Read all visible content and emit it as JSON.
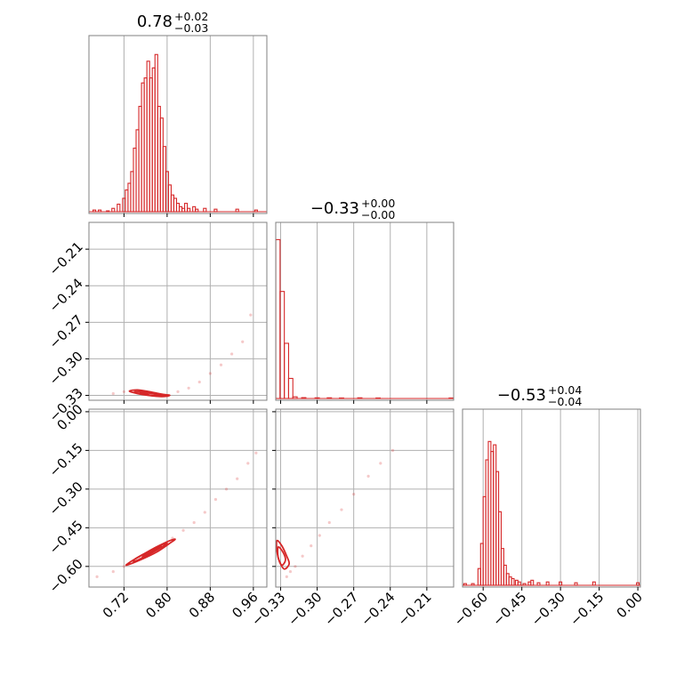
{
  "figure": "corner-plot",
  "colors": {
    "main": "#d62728",
    "grid": "#b0b0b0",
    "frame": "#808080"
  },
  "chart_data": [
    {
      "panel": "hist-p0",
      "type": "histogram",
      "title": {
        "value": "0.78",
        "plus": "+0.02",
        "minus": "−0.03"
      },
      "range": [
        0.655,
        0.985
      ],
      "bin_width": 0.005,
      "bins": [
        [
          0.665,
          0.01
        ],
        [
          0.675,
          0.01
        ],
        [
          0.69,
          0.005
        ],
        [
          0.7,
          0.02
        ],
        [
          0.71,
          0.045
        ],
        [
          0.72,
          0.08
        ],
        [
          0.725,
          0.13
        ],
        [
          0.73,
          0.17
        ],
        [
          0.735,
          0.24
        ],
        [
          0.74,
          0.38
        ],
        [
          0.745,
          0.49
        ],
        [
          0.75,
          0.63
        ],
        [
          0.755,
          0.77
        ],
        [
          0.76,
          0.8
        ],
        [
          0.765,
          0.9
        ],
        [
          0.77,
          0.8
        ],
        [
          0.775,
          0.86
        ],
        [
          0.78,
          0.94
        ],
        [
          0.785,
          0.63
        ],
        [
          0.79,
          0.56
        ],
        [
          0.795,
          0.39
        ],
        [
          0.8,
          0.24
        ],
        [
          0.805,
          0.16
        ],
        [
          0.81,
          0.1
        ],
        [
          0.815,
          0.08
        ],
        [
          0.82,
          0.05
        ],
        [
          0.825,
          0.03
        ],
        [
          0.83,
          0.02
        ],
        [
          0.835,
          0.05
        ],
        [
          0.84,
          0.02
        ],
        [
          0.85,
          0.03
        ],
        [
          0.855,
          0.015
        ],
        [
          0.87,
          0.02
        ],
        [
          0.89,
          0.015
        ],
        [
          0.93,
          0.015
        ],
        [
          0.965,
          0.01
        ]
      ]
    },
    {
      "panel": "hist-p1",
      "type": "histogram",
      "title": {
        "value": "−0.33",
        "plus": "+0.00",
        "minus": "−0.00"
      },
      "range": [
        -0.334,
        -0.188
      ],
      "bin_width": 0.0035,
      "bins": [
        [
          -0.3322,
          0.95
        ],
        [
          -0.3287,
          0.64
        ],
        [
          -0.3252,
          0.33
        ],
        [
          -0.3217,
          0.12
        ],
        [
          -0.3182,
          0.01
        ],
        [
          -0.311,
          0.005
        ],
        [
          -0.3,
          0.004
        ],
        [
          -0.29,
          0.004
        ],
        [
          -0.28,
          0.003
        ],
        [
          -0.265,
          0.004
        ],
        [
          -0.25,
          0.003
        ],
        [
          -0.19,
          0.003
        ]
      ]
    },
    {
      "panel": "hist-p2",
      "type": "histogram",
      "title": {
        "value": "−0.53",
        "plus": "+0.04",
        "minus": "−0.04"
      },
      "range": [
        -0.68,
        0.01
      ],
      "bin_width": 0.01,
      "bins": [
        [
          -0.67,
          0.01
        ],
        [
          -0.64,
          0.01
        ],
        [
          -0.615,
          0.1
        ],
        [
          -0.605,
          0.25
        ],
        [
          -0.595,
          0.53
        ],
        [
          -0.585,
          0.75
        ],
        [
          -0.575,
          0.86
        ],
        [
          -0.565,
          0.8
        ],
        [
          -0.555,
          0.84
        ],
        [
          -0.545,
          0.68
        ],
        [
          -0.535,
          0.44
        ],
        [
          -0.525,
          0.22
        ],
        [
          -0.515,
          0.12
        ],
        [
          -0.505,
          0.07
        ],
        [
          -0.495,
          0.05
        ],
        [
          -0.485,
          0.04
        ],
        [
          -0.47,
          0.03
        ],
        [
          -0.46,
          0.02
        ],
        [
          -0.44,
          0.01
        ],
        [
          -0.42,
          0.02
        ],
        [
          -0.41,
          0.03
        ],
        [
          -0.385,
          0.015
        ],
        [
          -0.35,
          0.02
        ],
        [
          -0.3,
          0.02
        ],
        [
          -0.24,
          0.015
        ],
        [
          -0.17,
          0.02
        ],
        [
          0.0,
          0.015
        ]
      ]
    },
    {
      "panel": "scatter-p0-p1",
      "type": "scatter",
      "xlim": [
        0.655,
        0.985
      ],
      "ylim": [
        -0.334,
        -0.188
      ],
      "points": [
        [
          0.7,
          -0.3285
        ],
        [
          0.72,
          -0.327
        ],
        [
          0.74,
          -0.3265
        ],
        [
          0.76,
          -0.3275
        ],
        [
          0.78,
          -0.329
        ],
        [
          0.8,
          -0.3305
        ],
        [
          0.82,
          -0.327
        ],
        [
          0.84,
          -0.324
        ],
        [
          0.86,
          -0.319
        ],
        [
          0.88,
          -0.312
        ],
        [
          0.9,
          -0.305
        ],
        [
          0.92,
          -0.296
        ],
        [
          0.94,
          -0.286
        ],
        [
          0.955,
          -0.264
        ]
      ],
      "contours": [
        [
          [
            0.73,
            -0.3265
          ],
          [
            0.745,
            -0.3255
          ],
          [
            0.765,
            -0.3268
          ],
          [
            0.79,
            -0.329
          ],
          [
            0.805,
            -0.33
          ],
          [
            0.79,
            -0.331
          ],
          [
            0.765,
            -0.33
          ],
          [
            0.745,
            -0.3285
          ]
        ],
        [
          [
            0.74,
            -0.327
          ],
          [
            0.76,
            -0.327
          ],
          [
            0.785,
            -0.329
          ],
          [
            0.8,
            -0.33
          ],
          [
            0.78,
            -0.3305
          ],
          [
            0.755,
            -0.329
          ]
        ],
        [
          [
            0.75,
            -0.3278
          ],
          [
            0.775,
            -0.3285
          ],
          [
            0.79,
            -0.3296
          ],
          [
            0.77,
            -0.3298
          ]
        ]
      ]
    },
    {
      "panel": "scatter-p0-p2",
      "type": "scatter",
      "xlim": [
        0.655,
        0.985
      ],
      "ylim": [
        -0.68,
        0.01
      ],
      "points": [
        [
          0.67,
          -0.64
        ],
        [
          0.7,
          -0.62
        ],
        [
          0.72,
          -0.6
        ],
        [
          0.75,
          -0.57
        ],
        [
          0.78,
          -0.53
        ],
        [
          0.81,
          -0.49
        ],
        [
          0.83,
          -0.46
        ],
        [
          0.85,
          -0.43
        ],
        [
          0.87,
          -0.39
        ],
        [
          0.89,
          -0.34
        ],
        [
          0.91,
          -0.3
        ],
        [
          0.93,
          -0.26
        ],
        [
          0.95,
          -0.2
        ],
        [
          0.965,
          -0.16
        ]
      ],
      "contours": [
        [
          [
            0.725,
            -0.595
          ],
          [
            0.75,
            -0.575
          ],
          [
            0.78,
            -0.545
          ],
          [
            0.805,
            -0.51
          ],
          [
            0.815,
            -0.495
          ],
          [
            0.805,
            -0.5
          ],
          [
            0.78,
            -0.525
          ],
          [
            0.75,
            -0.56
          ],
          [
            0.73,
            -0.585
          ]
        ],
        [
          [
            0.74,
            -0.58
          ],
          [
            0.765,
            -0.555
          ],
          [
            0.79,
            -0.525
          ],
          [
            0.8,
            -0.51
          ],
          [
            0.785,
            -0.52
          ],
          [
            0.76,
            -0.548
          ],
          [
            0.74,
            -0.572
          ]
        ],
        [
          [
            0.755,
            -0.565
          ],
          [
            0.775,
            -0.54
          ],
          [
            0.79,
            -0.522
          ],
          [
            0.775,
            -0.535
          ],
          [
            0.758,
            -0.556
          ]
        ]
      ]
    },
    {
      "panel": "scatter-p1-p2",
      "type": "scatter",
      "xlim": [
        -0.334,
        -0.188
      ],
      "ylim": [
        -0.68,
        0.01
      ],
      "points": [
        [
          -0.325,
          -0.64
        ],
        [
          -0.322,
          -0.62
        ],
        [
          -0.318,
          -0.6
        ],
        [
          -0.312,
          -0.56
        ],
        [
          -0.305,
          -0.52
        ],
        [
          -0.298,
          -0.48
        ],
        [
          -0.29,
          -0.43
        ],
        [
          -0.28,
          -0.38
        ],
        [
          -0.27,
          -0.32
        ],
        [
          -0.258,
          -0.25
        ],
        [
          -0.248,
          -0.2
        ],
        [
          -0.238,
          -0.15
        ]
      ],
      "contours": [
        [
          [
            -0.333,
            -0.5
          ],
          [
            -0.329,
            -0.52
          ],
          [
            -0.325,
            -0.56
          ],
          [
            -0.323,
            -0.59
          ],
          [
            -0.327,
            -0.61
          ],
          [
            -0.331,
            -0.58
          ],
          [
            -0.333,
            -0.54
          ]
        ],
        [
          [
            -0.332,
            -0.525
          ],
          [
            -0.328,
            -0.545
          ],
          [
            -0.326,
            -0.575
          ],
          [
            -0.329,
            -0.595
          ],
          [
            -0.332,
            -0.565
          ]
        ]
      ]
    }
  ],
  "axes": {
    "p0_ticks": [
      "0.72",
      "0.80",
      "0.88",
      "0.96"
    ],
    "p0_tick_values": [
      0.72,
      0.8,
      0.88,
      0.96
    ],
    "p1_ticks": [
      "−0.33",
      "−0.30",
      "−0.27",
      "−0.24",
      "−0.21"
    ],
    "p1_tick_values": [
      -0.33,
      -0.3,
      -0.27,
      -0.24,
      -0.21
    ],
    "p2_ticks": [
      "−0.60",
      "−0.45",
      "−0.30",
      "−0.15",
      "0.00"
    ],
    "p2_tick_values": [
      -0.6,
      -0.45,
      -0.3,
      -0.15,
      0.0
    ]
  }
}
